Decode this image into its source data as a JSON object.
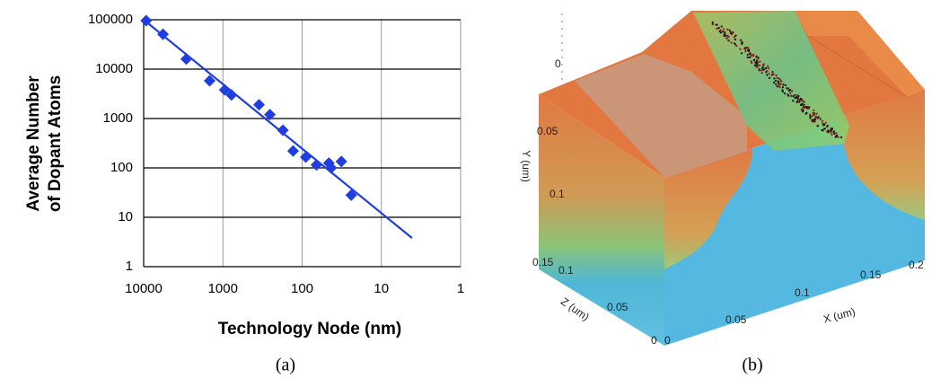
{
  "chart_data": {
    "type": "scatter",
    "xlabel": "Technology Node (nm)",
    "ylabel_lines": [
      "Average Number",
      "of Dopant Atoms"
    ],
    "xscale": "log",
    "yscale": "log",
    "grid": true,
    "xlim": [
      10000,
      1
    ],
    "xticks": [
      10000,
      1000,
      100,
      10,
      1
    ],
    "ylim": [
      1,
      100000
    ],
    "yticks": [
      1,
      10,
      100,
      1000,
      10000,
      100000
    ],
    "series": [
      {
        "color": "#1f3de0",
        "marker": "diamond",
        "x": [
          9300,
          5700,
          2900,
          1470,
          950,
          780,
          350,
          255,
          175,
          130,
          90,
          66,
          46,
          43,
          32,
          24
        ],
        "values": [
          96000,
          51000,
          16000,
          5800,
          3800,
          3000,
          1900,
          1200,
          580,
          220,
          165,
          115,
          125,
          100,
          135,
          28
        ]
      }
    ],
    "fit_line": {
      "color": "#1f3de0",
      "x": [
        10000,
        4.1
      ],
      "values": [
        100000,
        3.8
      ]
    }
  },
  "captions": [
    "(a)",
    "(b)"
  ],
  "device_3d": {
    "y_axis": {
      "label": "Y (um)",
      "ticks": [
        "0",
        "0.05",
        "0.1",
        "0.15"
      ]
    },
    "z_axis": {
      "label": "Z (um)",
      "ticks": [
        "0.1",
        "0.05",
        "0"
      ]
    },
    "x_axis": {
      "label": "X (um)",
      "ticks": [
        "0",
        "0.05",
        "0.1",
        "0.15",
        "0.2"
      ]
    }
  }
}
